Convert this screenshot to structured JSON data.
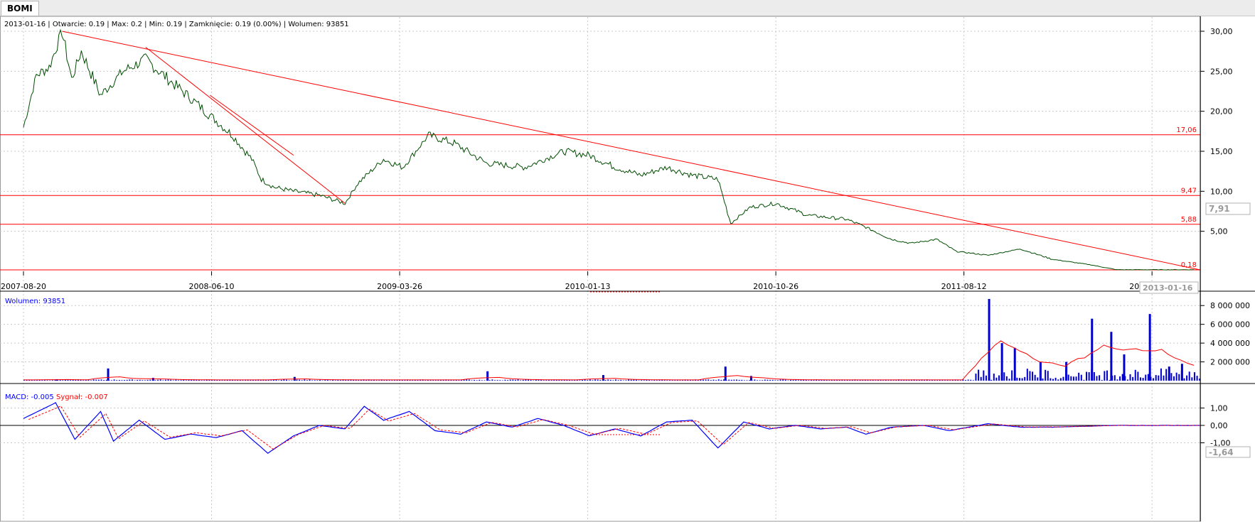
{
  "app": {
    "tab_label": "BOMI"
  },
  "colors": {
    "price": "#004d00",
    "trend": "#ff0000",
    "volume": "#0000cc",
    "macd": "#0000ff",
    "signal": "#ff0000",
    "grid": "#c8c8c8",
    "axis": "#000000"
  },
  "price_panel": {
    "info": "2013-01-16 | Otwarcie: 0.19 | Max: 0.2 | Min: 0.19 | Zamknięcie: 0.19 (0.00%)  | Wolumen: 93851",
    "current_value_badge": "7,91",
    "current_date_badge": "2013-01-16"
  },
  "volume_panel": {
    "label": "Wolumen: 93851"
  },
  "macd_panel": {
    "label_macd": "MACD: -0.005",
    "label_signal": "Sygnał: -0.007",
    "current_value_badge": "-1,64"
  },
  "chart_data": {
    "type": "line",
    "x_tick_labels": [
      "2007-08-20",
      "2008-06-10",
      "2009-03-26",
      "2010-01-13",
      "2010-10-26",
      "2011-08-12",
      "2012-05-31"
    ],
    "price": {
      "ylim": [
        0,
        30
      ],
      "y_ticks": [
        5,
        10,
        15,
        20,
        25,
        30
      ],
      "y_tick_labels": [
        "5,00",
        "10,00",
        "15,00",
        "20,00",
        "25,00",
        "30,00"
      ],
      "series_points": [
        [
          0,
          18.0
        ],
        [
          0.02,
          24.5
        ],
        [
          0.04,
          25.5
        ],
        [
          0.06,
          30.0
        ],
        [
          0.075,
          24.0
        ],
        [
          0.09,
          27.5
        ],
        [
          0.12,
          22.0
        ],
        [
          0.155,
          25.0
        ],
        [
          0.19,
          26.5
        ],
        [
          0.225,
          24.0
        ],
        [
          0.255,
          22.0
        ],
        [
          0.29,
          19.5
        ],
        [
          0.325,
          17.0
        ],
        [
          0.355,
          14.0
        ],
        [
          0.37,
          11.5
        ],
        [
          0.39,
          10.5
        ],
        [
          0.42,
          10.0
        ],
        [
          0.46,
          9.5
        ],
        [
          0.5,
          8.5
        ],
        [
          0.52,
          11.0
        ],
        [
          0.56,
          14.0
        ],
        [
          0.59,
          13.0
        ],
        [
          0.63,
          17.0
        ],
        [
          0.67,
          16.0
        ],
        [
          0.72,
          13.5
        ],
        [
          0.78,
          13.0
        ],
        [
          0.84,
          15.0
        ],
        [
          0.88,
          14.5
        ],
        [
          0.92,
          13.0
        ],
        [
          0.96,
          12.0
        ],
        [
          1.0,
          13.0
        ],
        [
          1.04,
          12.0
        ],
        [
          1.08,
          11.5
        ],
        [
          1.1,
          6.0
        ],
        [
          1.13,
          8.0
        ],
        [
          1.17,
          8.5
        ],
        [
          1.22,
          7.0
        ],
        [
          1.28,
          6.5
        ],
        [
          1.31,
          5.5
        ],
        [
          1.35,
          4.0
        ],
        [
          1.38,
          3.5
        ],
        [
          1.42,
          4.0
        ],
        [
          1.45,
          2.5
        ],
        [
          1.5,
          2.0
        ],
        [
          1.55,
          2.8
        ],
        [
          1.6,
          1.5
        ],
        [
          1.66,
          0.8
        ],
        [
          1.7,
          0.2
        ],
        [
          1.76,
          0.2
        ],
        [
          1.82,
          0.2
        ]
      ],
      "horizontal_levels": [
        17.06,
        9.47,
        5.88,
        0.18
      ],
      "level_labels": [
        "17,06",
        "9,47",
        "5,88",
        "0,18"
      ],
      "trend_lines": [
        {
          "from": [
            0.06,
            30.0
          ],
          "to": [
            1.83,
            0.18
          ]
        },
        {
          "from": [
            0.19,
            28.0
          ],
          "to": [
            0.5,
            8.5
          ]
        },
        {
          "from": [
            0.29,
            22.0
          ],
          "to": [
            0.42,
            14.5
          ]
        }
      ]
    },
    "volume": {
      "ylim": [
        0,
        9000000
      ],
      "y_ticks": [
        2000000,
        4000000,
        6000000,
        8000000
      ],
      "y_tick_labels": [
        "2 000 000",
        "4 000 000",
        "6 000 000",
        "8 000 000"
      ],
      "spikes": [
        [
          0.05,
          150000
        ],
        [
          0.13,
          1300000
        ],
        [
          0.2,
          300000
        ],
        [
          0.42,
          400000
        ],
        [
          0.72,
          1000000
        ],
        [
          0.9,
          600000
        ],
        [
          1.09,
          1500000
        ],
        [
          1.13,
          500000
        ],
        [
          1.5,
          8700000
        ],
        [
          1.52,
          4000000
        ],
        [
          1.54,
          3500000
        ],
        [
          1.58,
          2000000
        ],
        [
          1.62,
          2000000
        ],
        [
          1.66,
          6600000
        ],
        [
          1.69,
          5200000
        ],
        [
          1.71,
          2800000
        ],
        [
          1.75,
          7100000
        ],
        [
          1.78,
          1500000
        ],
        [
          1.8,
          1800000
        ]
      ]
    },
    "macd": {
      "ylim": [
        -2,
        2
      ],
      "y_ticks": [
        1,
        0,
        -1
      ],
      "y_tick_labels": [
        "1,00",
        "0,00",
        "-1,00"
      ],
      "macd_points": [
        [
          0.0,
          0.4
        ],
        [
          0.05,
          1.3
        ],
        [
          0.08,
          -0.8
        ],
        [
          0.12,
          0.8
        ],
        [
          0.14,
          -0.9
        ],
        [
          0.18,
          0.3
        ],
        [
          0.22,
          -0.8
        ],
        [
          0.26,
          -0.5
        ],
        [
          0.3,
          -0.7
        ],
        [
          0.34,
          -0.3
        ],
        [
          0.38,
          -1.6
        ],
        [
          0.42,
          -0.6
        ],
        [
          0.46,
          0.0
        ],
        [
          0.5,
          -0.2
        ],
        [
          0.53,
          1.1
        ],
        [
          0.56,
          0.3
        ],
        [
          0.6,
          0.8
        ],
        [
          0.64,
          -0.3
        ],
        [
          0.68,
          -0.5
        ],
        [
          0.72,
          0.2
        ],
        [
          0.76,
          -0.1
        ],
        [
          0.8,
          0.4
        ],
        [
          0.84,
          0.0
        ],
        [
          0.88,
          -0.6
        ],
        [
          0.92,
          -0.2
        ],
        [
          0.96,
          -0.6
        ],
        [
          1.0,
          0.2
        ],
        [
          1.04,
          0.3
        ],
        [
          1.08,
          -1.3
        ],
        [
          1.12,
          0.2
        ],
        [
          1.16,
          -0.2
        ],
        [
          1.2,
          0.0
        ],
        [
          1.24,
          -0.2
        ],
        [
          1.28,
          -0.1
        ],
        [
          1.31,
          -0.5
        ],
        [
          1.35,
          -0.1
        ],
        [
          1.4,
          0.0
        ],
        [
          1.44,
          -0.3
        ],
        [
          1.5,
          0.1
        ],
        [
          1.55,
          -0.1
        ],
        [
          1.6,
          -0.1
        ],
        [
          1.7,
          0.0
        ],
        [
          1.83,
          0.0
        ]
      ]
    }
  }
}
